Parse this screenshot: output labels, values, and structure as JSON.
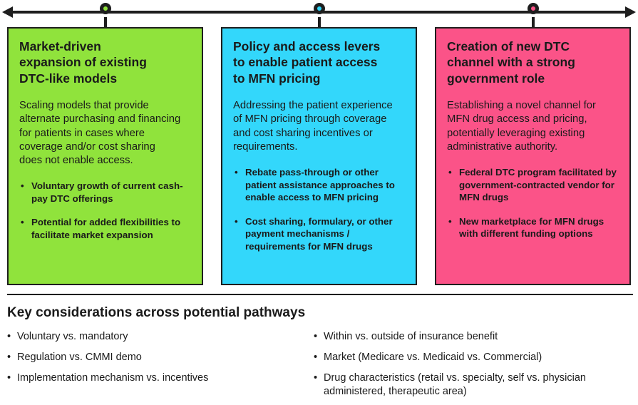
{
  "colors": {
    "green": "#90E33C",
    "cyan": "#33D7FB",
    "pink": "#FB5388",
    "line": "#1E1E1E",
    "text": "#1A1A1A"
  },
  "cards": [
    {
      "color": "green",
      "title": "Market-driven\nexpansion of existing\nDTC-like models",
      "description": "Scaling models that provide\nalternate purchasing and financing\nfor patients in cases where\ncoverage and/or cost sharing\ndoes not enable access.",
      "bullets": [
        "Voluntary growth of current cash-pay DTC offerings",
        "Potential for added flexibilities to facilitate market expansion"
      ]
    },
    {
      "color": "cyan",
      "title": "Policy and access levers\nto enable patient access\nto MFN pricing",
      "description": "Addressing the patient experience\nof MFN pricing through coverage\nand cost sharing incentives or\nrequirements.",
      "bullets": [
        "Rebate pass-through or other patient assistance approaches to enable access to MFN pricing",
        "Cost sharing, formulary, or other payment mechanisms / requirements for MFN drugs"
      ]
    },
    {
      "color": "pink",
      "title": "Creation of new DTC\nchannel with a strong\ngovernment role",
      "description": "Establishing a novel channel for\nMFN drug access and pricing,\npotentially leveraging existing\nadministrative authority.",
      "bullets": [
        "Federal DTC program facilitated by government-contracted vendor for MFN drugs",
        "New marketplace for MFN drugs with different funding options"
      ]
    }
  ],
  "considerations": {
    "heading": "Key considerations across potential pathways",
    "left": [
      "Voluntary vs. mandatory",
      "Regulation vs. CMMI demo",
      "Implementation mechanism vs. incentives"
    ],
    "right": [
      "Within vs. outside of insurance benefit",
      "Market (Medicare vs. Medicaid vs. Commercial)",
      "Drug characteristics (retail vs. specialty, self vs. physician administered, therapeutic area)"
    ]
  }
}
